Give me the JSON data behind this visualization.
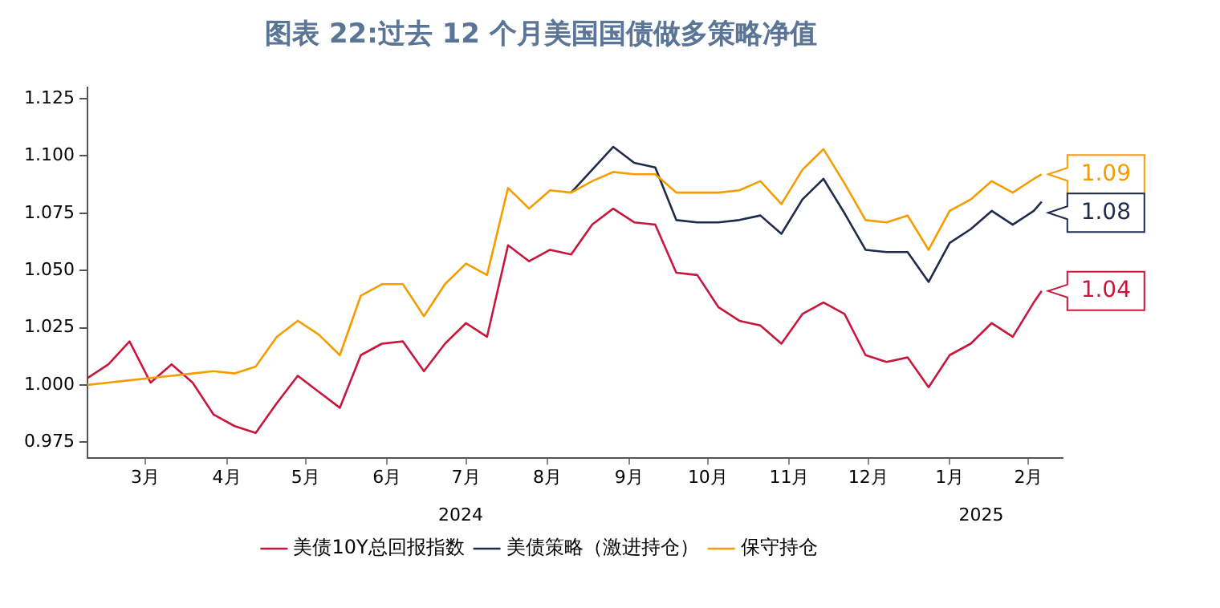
{
  "chart_data": {
    "type": "line",
    "title": "图表 22:过去 12 个月美国国债做多策略净值",
    "x": [
      "2024-02-23",
      "2024-03-02",
      "2024-03-10",
      "2024-03-18",
      "2024-03-26",
      "2024-04-03",
      "2024-04-11",
      "2024-04-19",
      "2024-04-27",
      "2024-05-05",
      "2024-05-13",
      "2024-05-21",
      "2024-05-29",
      "2024-06-06",
      "2024-06-14",
      "2024-06-22",
      "2024-06-30",
      "2024-07-08",
      "2024-07-16",
      "2024-07-24",
      "2024-08-01",
      "2024-08-09",
      "2024-08-17",
      "2024-08-25",
      "2024-09-02",
      "2024-09-10",
      "2024-09-18",
      "2024-09-26",
      "2024-10-04",
      "2024-10-12",
      "2024-10-20",
      "2024-10-28",
      "2024-11-05",
      "2024-11-13",
      "2024-11-21",
      "2024-11-29",
      "2024-12-07",
      "2024-12-15",
      "2024-12-23",
      "2024-12-31",
      "2025-01-08",
      "2025-01-16",
      "2025-01-24",
      "2025-02-01",
      "2025-02-09",
      "2025-02-17",
      "2025-02-20"
    ],
    "series": [
      {
        "name": "美债10Y总回报指数",
        "color": "#c8173c",
        "values": [
          1.003,
          1.009,
          1.019,
          1.001,
          1.009,
          1.001,
          0.987,
          0.982,
          0.979,
          0.992,
          1.004,
          0.997,
          0.99,
          1.013,
          1.018,
          1.019,
          1.006,
          1.018,
          1.027,
          1.021,
          1.061,
          1.054,
          1.059,
          1.057,
          1.07,
          1.077,
          1.071,
          1.07,
          1.049,
          1.048,
          1.034,
          1.028,
          1.026,
          1.018,
          1.031,
          1.036,
          1.031,
          1.013,
          1.01,
          1.012,
          0.999,
          1.013,
          1.018,
          1.027,
          1.021,
          1.036,
          1.041
        ],
        "value_labels": [
          null,
          null,
          null,
          null,
          null,
          null,
          null,
          null,
          null,
          null,
          null,
          null,
          null,
          null,
          null,
          null,
          null,
          null,
          null,
          null,
          null,
          null,
          null,
          null,
          null,
          null,
          null,
          null,
          null,
          null,
          null,
          null,
          null,
          null,
          null,
          null,
          null,
          null,
          null,
          null,
          null,
          null,
          null,
          null,
          null,
          null,
          "1.04"
        ]
      },
      {
        "name": "美债策略（激进持仓）",
        "color": "#1f2b4d",
        "values": [
          null,
          null,
          null,
          null,
          null,
          null,
          null,
          null,
          null,
          null,
          null,
          null,
          null,
          null,
          null,
          null,
          null,
          null,
          null,
          null,
          null,
          null,
          null,
          1.084,
          1.094,
          1.104,
          1.097,
          1.095,
          1.072,
          1.071,
          1.071,
          1.072,
          1.074,
          1.066,
          1.081,
          1.09,
          1.075,
          1.059,
          1.058,
          1.058,
          1.045,
          1.062,
          1.068,
          1.076,
          1.07,
          1.076,
          1.08
        ],
        "value_labels": [
          null,
          null,
          null,
          null,
          null,
          null,
          null,
          null,
          null,
          null,
          null,
          null,
          null,
          null,
          null,
          null,
          null,
          null,
          null,
          null,
          null,
          null,
          null,
          null,
          null,
          null,
          null,
          null,
          null,
          null,
          null,
          null,
          null,
          null,
          null,
          null,
          null,
          null,
          null,
          null,
          null,
          null,
          null,
          null,
          null,
          null,
          "1.08"
        ]
      },
      {
        "name": "保守持仓",
        "color": "#f59d00",
        "values": [
          1.0,
          1.001,
          1.002,
          1.003,
          1.004,
          1.005,
          1.006,
          1.005,
          1.008,
          1.021,
          1.028,
          1.022,
          1.013,
          1.039,
          1.044,
          1.044,
          1.03,
          1.044,
          1.053,
          1.048,
          1.086,
          1.077,
          1.085,
          1.084,
          1.089,
          1.093,
          1.092,
          1.092,
          1.084,
          1.084,
          1.084,
          1.085,
          1.089,
          1.079,
          1.094,
          1.103,
          1.088,
          1.072,
          1.071,
          1.074,
          1.059,
          1.076,
          1.081,
          1.089,
          1.084,
          1.09,
          1.092
        ],
        "value_labels": [
          null,
          null,
          null,
          null,
          null,
          null,
          null,
          null,
          null,
          null,
          null,
          null,
          null,
          null,
          null,
          null,
          null,
          null,
          null,
          null,
          null,
          null,
          null,
          null,
          null,
          null,
          null,
          null,
          null,
          null,
          null,
          null,
          null,
          null,
          null,
          null,
          null,
          null,
          null,
          null,
          null,
          null,
          null,
          null,
          null,
          null,
          "1.09"
        ]
      }
    ],
    "xlim": [
      "2024-02-23",
      "2025-02-28"
    ],
    "xticks": [
      {
        "value": "2024-03-16",
        "label": "3月"
      },
      {
        "value": "2024-04-16",
        "label": "4月"
      },
      {
        "value": "2024-05-16",
        "label": "5月"
      },
      {
        "value": "2024-06-16",
        "label": "6月"
      },
      {
        "value": "2024-07-16",
        "label": "7月"
      },
      {
        "value": "2024-08-16",
        "label": "8月"
      },
      {
        "value": "2024-09-16",
        "label": "9月"
      },
      {
        "value": "2024-10-16",
        "label": "10月"
      },
      {
        "value": "2024-11-16",
        "label": "11月"
      },
      {
        "value": "2024-12-16",
        "label": "12月"
      },
      {
        "value": "2025-01-16",
        "label": "1月"
      },
      {
        "value": "2025-02-15",
        "label": "2月"
      }
    ],
    "x2lim": [
      "2024-02-23",
      "2025-02-28"
    ],
    "x2ticks": [
      {
        "value": "2024-07-14",
        "label": "2024"
      },
      {
        "value": "2025-01-28",
        "label": "2025"
      }
    ],
    "ylim": [
      0.968,
      1.13
    ],
    "yticks": [
      {
        "value": 0.975,
        "label": "0.975"
      },
      {
        "value": 1.0,
        "label": "1.000"
      },
      {
        "value": 1.025,
        "label": "1.025"
      },
      {
        "value": 1.05,
        "label": "1.050"
      },
      {
        "value": 1.075,
        "label": "1.075"
      },
      {
        "value": 1.1,
        "label": "1.100"
      },
      {
        "value": 1.125,
        "label": "1.125"
      }
    ],
    "grid": false,
    "legend": "bottom",
    "marker": "none",
    "line_style": "solid"
  }
}
